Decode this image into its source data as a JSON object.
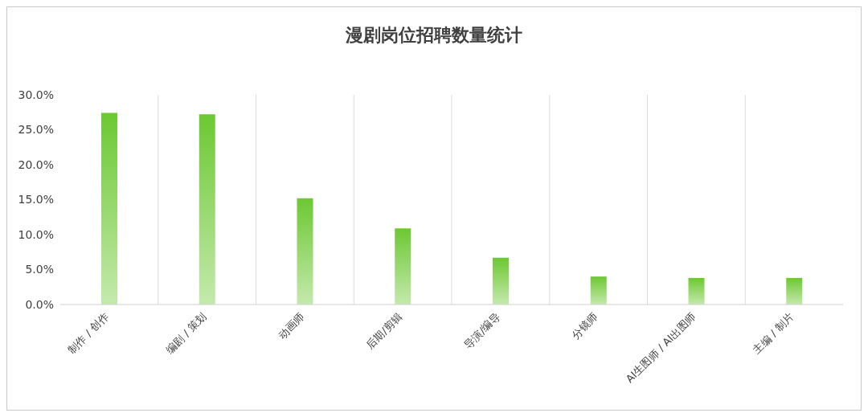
{
  "chart_data": {
    "type": "bar",
    "title": "漫剧岗位招聘数量统计",
    "categories": [
      "制作 / 创作",
      "编剧 / 策划",
      "动画师",
      "后期/剪辑",
      "导演/编导",
      "分镜师",
      "AI生图师 / AI出图师",
      "主编 / 制片"
    ],
    "values": [
      27.4,
      27.2,
      15.2,
      10.9,
      6.7,
      4.0,
      3.8,
      3.8
    ],
    "color": "#6cc832",
    "ylim": [
      0,
      30
    ],
    "yticks": [
      {
        "value": 0,
        "label": "0.0%"
      },
      {
        "value": 5,
        "label": "5.0%"
      },
      {
        "value": 10,
        "label": "10.0%"
      },
      {
        "value": 15,
        "label": "15.0%"
      },
      {
        "value": 20,
        "label": "20.0%"
      },
      {
        "value": 25,
        "label": "25.0%"
      },
      {
        "value": 30,
        "label": "30.0%"
      }
    ],
    "grid": "x"
  }
}
